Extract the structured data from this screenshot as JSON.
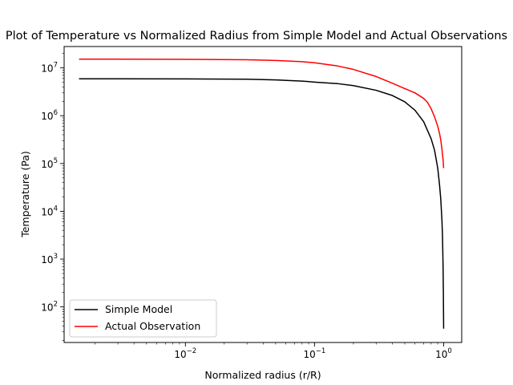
{
  "chart_data": {
    "type": "line",
    "title": "Plot of Temperature vs Normalized Radius from Simple Model and Actual Observations",
    "xlabel": "Normalized radius (r/R)",
    "ylabel": "Temperature (Pa)",
    "xscale": "log",
    "yscale": "log",
    "xlim": [
      0.00115,
      1.38
    ],
    "ylim": [
      18,
      28000000
    ],
    "grid": false,
    "legend": "lower-left",
    "x_ticks": [
      {
        "value": 0.01,
        "mantissa": "10",
        "exponent": "−2"
      },
      {
        "value": 0.1,
        "mantissa": "10",
        "exponent": "−1"
      },
      {
        "value": 1,
        "mantissa": "10",
        "exponent": "0"
      }
    ],
    "y_ticks": [
      {
        "value": 100,
        "mantissa": "10",
        "exponent": "2"
      },
      {
        "value": 1000,
        "mantissa": "10",
        "exponent": "3"
      },
      {
        "value": 10000,
        "mantissa": "10",
        "exponent": "4"
      },
      {
        "value": 100000,
        "mantissa": "10",
        "exponent": "5"
      },
      {
        "value": 1000000,
        "mantissa": "10",
        "exponent": "6"
      },
      {
        "value": 10000000,
        "mantissa": "10",
        "exponent": "7"
      }
    ],
    "series": [
      {
        "name": "Simple Model",
        "color": "#000000",
        "x": [
          0.0015,
          0.003,
          0.01,
          0.03,
          0.05,
          0.08,
          0.1,
          0.15,
          0.2,
          0.3,
          0.4,
          0.5,
          0.6,
          0.7,
          0.8,
          0.85,
          0.9,
          0.93,
          0.95,
          0.97,
          0.98,
          0.99,
          0.995,
          1.0
        ],
        "y": [
          5900000,
          5900000,
          5880000,
          5800000,
          5600000,
          5300000,
          5050000,
          4700000,
          4250000,
          3400000,
          2650000,
          1950000,
          1300000,
          750000,
          330000,
          190000,
          80000,
          35000,
          18000,
          6500,
          3000,
          700,
          200,
          35
        ]
      },
      {
        "name": "Actual Observation",
        "color": "#ff0000",
        "x": [
          0.0015,
          0.003,
          0.01,
          0.03,
          0.05,
          0.08,
          0.1,
          0.15,
          0.2,
          0.3,
          0.4,
          0.5,
          0.6,
          0.7,
          0.75,
          0.8,
          0.85,
          0.9,
          0.93,
          0.95,
          0.97,
          0.99,
          1.0
        ],
        "y": [
          15200000,
          15200000,
          15100000,
          14800000,
          14300000,
          13500000,
          12800000,
          11000000,
          9300000,
          6600000,
          4800000,
          3700000,
          3000000,
          2300000,
          1900000,
          1400000,
          950000,
          600000,
          420000,
          310000,
          200000,
          120000,
          80000
        ]
      }
    ]
  }
}
